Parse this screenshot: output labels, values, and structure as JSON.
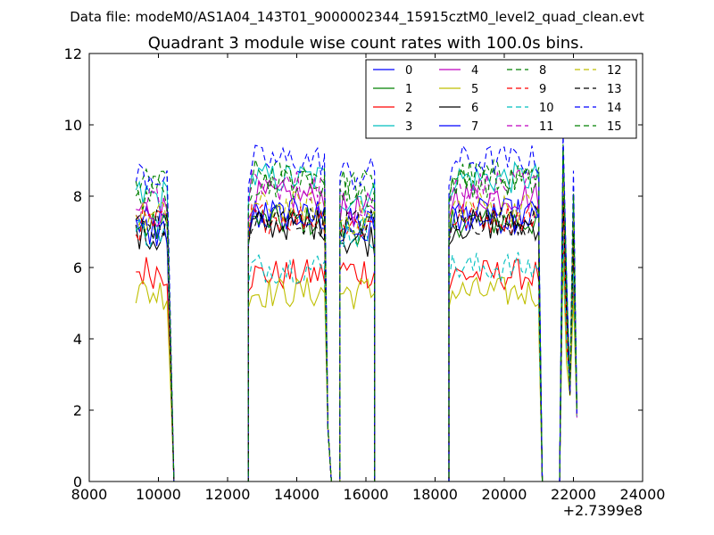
{
  "header": {
    "file_label": "Data file: modeM0/AS1A04_143T01_9000002344_15915cztM0_level2_quad_clean.evt"
  },
  "chart_data": {
    "type": "line",
    "title": "Quadrant 3 module wise count rates with 100.0s bins.",
    "xlabel": "",
    "ylabel": "",
    "x_offset_label": "+2.7399e8",
    "xlim": [
      8000,
      24000
    ],
    "ylim": [
      0,
      12
    ],
    "xticks": [
      8000,
      10000,
      12000,
      14000,
      16000,
      18000,
      20000,
      22000,
      24000
    ],
    "xtick_labels": [
      "8000",
      "10000",
      "12000",
      "14000",
      "16000",
      "18000",
      "20000",
      "22000",
      "24000"
    ],
    "yticks": [
      0,
      2,
      4,
      6,
      8,
      10,
      12
    ],
    "ytick_labels": [
      "0",
      "2",
      "4",
      "6",
      "8",
      "10",
      "12"
    ],
    "grid": false,
    "legend_position": "top-right",
    "legend_columns": 4,
    "segments": [
      {
        "x": [
          9350,
          9450,
          9550,
          9650,
          9750,
          9850,
          9950,
          10050,
          10150,
          10250
        ]
      },
      {
        "x": [
          10350,
          10450
        ]
      },
      {
        "x": [
          10450,
          12600
        ]
      },
      {
        "x": [
          12600,
          12700,
          12800,
          12900,
          13000,
          13100,
          13200,
          13300,
          13400,
          13500,
          13600,
          13700,
          13800,
          13900,
          14000,
          14100,
          14200,
          14300,
          14400,
          14500,
          14600,
          14700,
          14800
        ]
      },
      {
        "x": [
          14800,
          14900,
          15000
        ]
      },
      {
        "x": [
          15000,
          15250
        ]
      },
      {
        "x": [
          15250,
          15350,
          15450,
          15550,
          15650,
          15750,
          15850,
          15950,
          16050,
          16150,
          16250
        ]
      },
      {
        "x": [
          16250,
          18400
        ]
      },
      {
        "x": [
          18400,
          18500,
          18600,
          18700,
          18800,
          18900,
          19000,
          19100,
          19200,
          19300,
          19400,
          19500,
          19600,
          19700,
          19800,
          19900,
          20000,
          20100,
          20200,
          20300,
          20400,
          20500,
          20600,
          20700,
          20800,
          20900,
          21000
        ]
      },
      {
        "x": [
          21000,
          21100
        ]
      },
      {
        "x": [
          21100,
          21600
        ]
      },
      {
        "x": [
          21600,
          21700,
          21800,
          21900,
          22000,
          22100
        ]
      }
    ],
    "series": [
      {
        "name": "0",
        "color": "#0000ff",
        "dash": "solid",
        "level": 7.4,
        "low_level": 7.2
      },
      {
        "name": "1",
        "color": "#008000",
        "dash": "solid",
        "level": 7.3,
        "low_level": 7.1
      },
      {
        "name": "2",
        "color": "#ff0000",
        "dash": "solid",
        "level": 5.8,
        "low_level": 5.9
      },
      {
        "name": "3",
        "color": "#00bfbf",
        "dash": "solid",
        "level": 8.5,
        "low_level": 8.0
      },
      {
        "name": "4",
        "color": "#bf00bf",
        "dash": "solid",
        "level": 8.0,
        "low_level": 7.6
      },
      {
        "name": "5",
        "color": "#bfbf00",
        "dash": "solid",
        "level": 5.3,
        "low_level": 5.3
      },
      {
        "name": "6",
        "color": "#000000",
        "dash": "solid",
        "level": 7.2,
        "low_level": 6.8
      },
      {
        "name": "7",
        "color": "#0000ff",
        "dash": "solid",
        "level": 7.5,
        "low_level": 7.0
      },
      {
        "name": "8",
        "color": "#008000",
        "dash": "dashed",
        "level": 8.6,
        "low_level": 8.3
      },
      {
        "name": "9",
        "color": "#ff0000",
        "dash": "dashed",
        "level": 7.4,
        "low_level": 7.2
      },
      {
        "name": "10",
        "color": "#00bfbf",
        "dash": "dashed",
        "level": 6.0,
        "low_level": 7.0
      },
      {
        "name": "11",
        "color": "#bf00bf",
        "dash": "dashed",
        "level": 8.3,
        "low_level": 7.8
      },
      {
        "name": "12",
        "color": "#bfbf00",
        "dash": "dashed",
        "level": 7.7,
        "low_level": 7.4
      },
      {
        "name": "13",
        "color": "#000000",
        "dash": "dashed",
        "level": 7.3,
        "low_level": 7.2
      },
      {
        "name": "14",
        "color": "#0000ff",
        "dash": "dashed",
        "level": 9.0,
        "low_level": 8.6
      },
      {
        "name": "15",
        "color": "#008000",
        "dash": "dashed",
        "level": 8.4,
        "low_level": 8.1
      }
    ]
  }
}
